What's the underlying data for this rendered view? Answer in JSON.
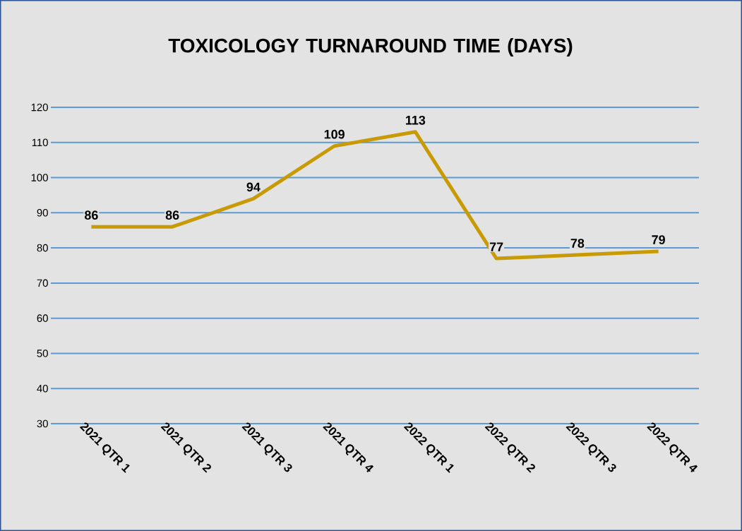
{
  "chart_data": {
    "type": "line",
    "title": "TOXICOLOGY TURNAROUND TIME (DAYS)",
    "categories": [
      "2021 QTR 1",
      "2021 QTR 2",
      "2021 QTR 3",
      "2021 QTR 4",
      "2022 QTR 1",
      "2022 QTR 2",
      "2022 QTR 3",
      "2022 QTR 4"
    ],
    "series": [
      {
        "color": "#c89b06",
        "values": [
          86,
          86,
          94,
          109,
          113,
          77,
          78,
          79
        ]
      }
    ],
    "ylim": [
      30,
      120
    ],
    "yticks": [
      30,
      40,
      50,
      60,
      70,
      80,
      90,
      100,
      110,
      120
    ],
    "grid": "y",
    "data_labels": true,
    "marker": "none",
    "line_style": "solid"
  }
}
